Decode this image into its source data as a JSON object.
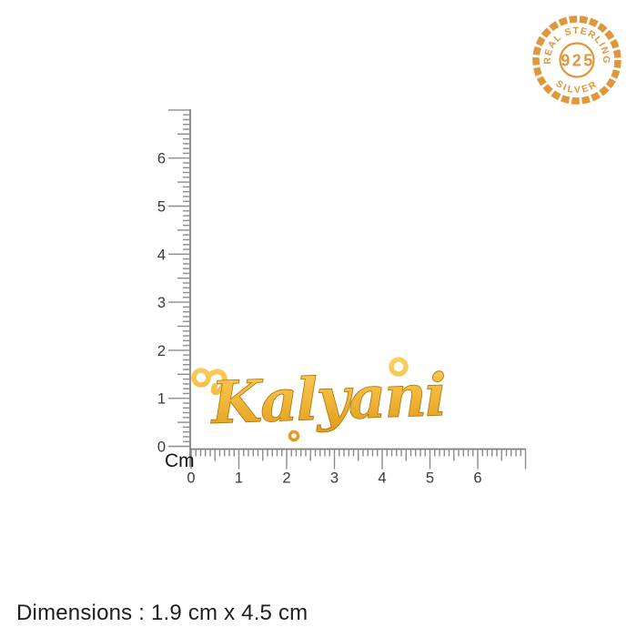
{
  "badge": {
    "top_text": "REAL STERLING",
    "center_text": "925",
    "bottom_text": "SILVER",
    "color": "#E0973B"
  },
  "rulers": {
    "unit_label": "Cm",
    "vertical_numbers": [
      "0",
      "1",
      "2",
      "3",
      "4",
      "5",
      "6"
    ],
    "horizontal_numbers": [
      "0",
      "1",
      "2",
      "3",
      "4",
      "5",
      "6"
    ]
  },
  "pendant": {
    "name": "Kalyani",
    "gold_highlight": "#F9D365",
    "gold_mid": "#F2B93B",
    "gold_shadow": "#DD9414"
  },
  "footer": {
    "dimensions_text": "Dimensions : 1.9 cm x 4.5 cm"
  }
}
